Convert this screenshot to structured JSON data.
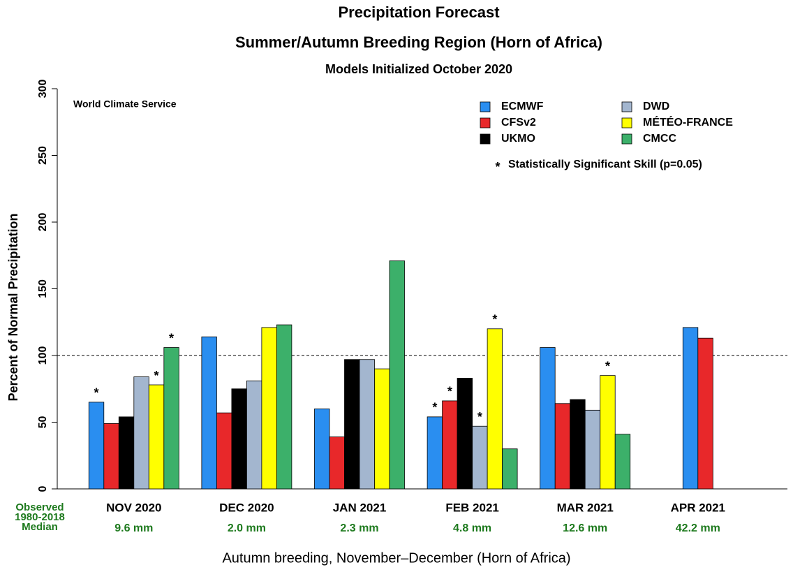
{
  "chart_data": {
    "type": "bar",
    "title": "Precipitation Forecast",
    "subtitle": "Summer/Autumn Breeding Region (Horn of Africa)",
    "subtitle2": "Models Initialized October 2020",
    "watermark": "World Climate Service",
    "ylabel": "Percent of Normal Precipitation",
    "categories": [
      "NOV 2020",
      "DEC 2020",
      "JAN 2021",
      "FEB 2021",
      "MAR 2021",
      "APR 2021"
    ],
    "series": [
      {
        "name": "ECMWF",
        "color": "#2a8ef0",
        "values": [
          65,
          114,
          60,
          54,
          106,
          121
        ],
        "significant": [
          true,
          false,
          false,
          true,
          false,
          false
        ]
      },
      {
        "name": "CFSv2",
        "color": "#e8282a",
        "values": [
          49,
          57,
          39,
          66,
          64,
          113
        ],
        "significant": [
          false,
          false,
          false,
          true,
          false,
          false
        ]
      },
      {
        "name": "UKMO",
        "color": "#000000",
        "values": [
          54,
          75,
          97,
          83,
          67,
          null
        ],
        "significant": [
          false,
          false,
          false,
          false,
          false,
          false
        ]
      },
      {
        "name": "DWD",
        "color": "#a3b6cf",
        "values": [
          84,
          81,
          97,
          47,
          59,
          null
        ],
        "significant": [
          false,
          false,
          false,
          true,
          false,
          false
        ]
      },
      {
        "name": "MÉTÉO-FRANCE",
        "color": "#ffff00",
        "values": [
          78,
          121,
          90,
          120,
          85,
          null
        ],
        "significant": [
          true,
          false,
          false,
          true,
          true,
          false
        ]
      },
      {
        "name": "CMCC",
        "color": "#3cb06a",
        "values": [
          106,
          123,
          171,
          30,
          41,
          null
        ],
        "significant": [
          true,
          false,
          false,
          false,
          false,
          false
        ]
      }
    ],
    "significance_marker": "*",
    "significance_note": "Statistically Significant Skill (p=0.05)",
    "reference_line": 100,
    "ylim": [
      0,
      300
    ],
    "yticks": [
      0,
      50,
      100,
      150,
      200,
      250,
      300
    ],
    "observed_label": [
      "Observed",
      "1980-2018",
      "Median"
    ],
    "observed_medians": [
      "9.6 mm",
      "2.0 mm",
      "2.3 mm",
      "4.8 mm",
      "12.6 mm",
      "42.2 mm"
    ],
    "caption": "Autumn breeding, November–December (Horn of Africa)"
  }
}
